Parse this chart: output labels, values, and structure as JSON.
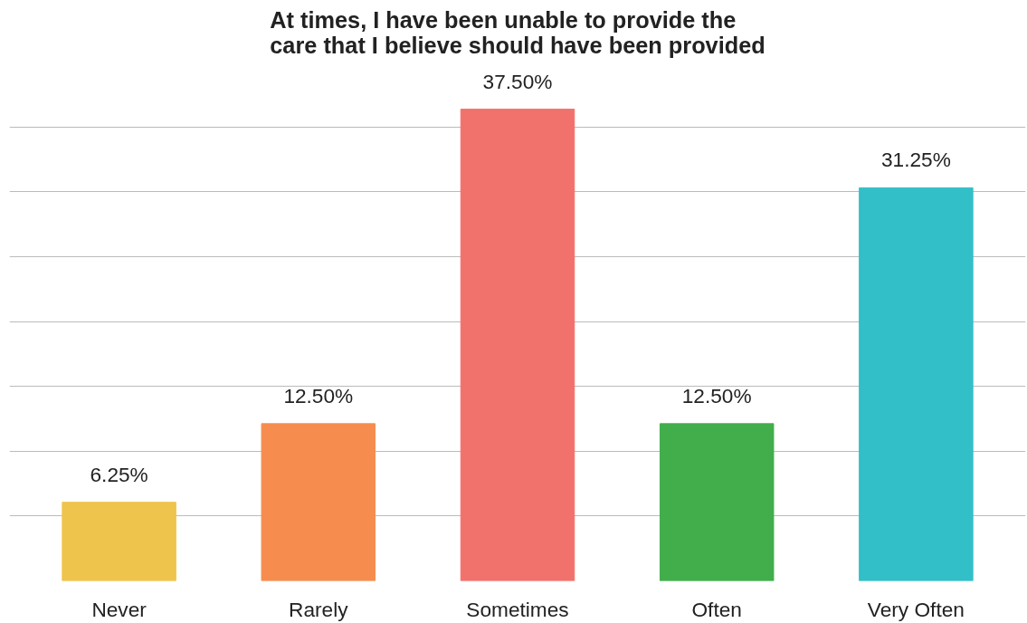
{
  "chart_data": {
    "type": "bar",
    "title": "At times, I have been unable to provide the\ncare that I believe should have been provided",
    "categories": [
      "Never",
      "Rarely",
      "Sometimes",
      "Often",
      "Very Often"
    ],
    "values": [
      6.25,
      12.5,
      37.5,
      12.5,
      31.25
    ],
    "colors": [
      "#efc44d",
      "#f68d4f",
      "#f1726c",
      "#41ae4b",
      "#33bfc7"
    ],
    "value_labels": [
      "6.25%",
      "12.50%",
      "37.50%",
      "12.50%",
      "31.25%"
    ],
    "grid": "y",
    "tick_labels": "x"
  }
}
